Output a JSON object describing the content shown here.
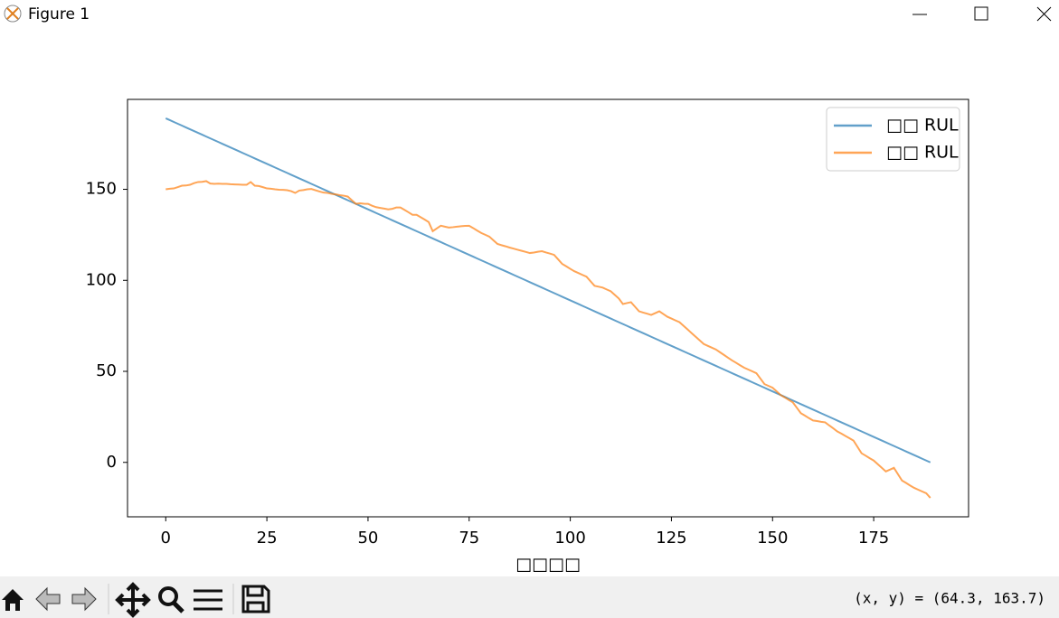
{
  "window": {
    "title": "Figure 1"
  },
  "toolbar": {
    "coordinates": "(x, y) = (64.3, 163.7)"
  },
  "chart_data": {
    "type": "line",
    "xlabel": "□□□□",
    "x": [
      0,
      1,
      2,
      3,
      4,
      5,
      6,
      7,
      8,
      9,
      10,
      11,
      12,
      13,
      14,
      15,
      16,
      17,
      18,
      19,
      20,
      21,
      22,
      23,
      24,
      25,
      26,
      27,
      28,
      29,
      30,
      31,
      32,
      33,
      34,
      35,
      36,
      37,
      38,
      39,
      40,
      41,
      42,
      43,
      44,
      45,
      46,
      47,
      48,
      49,
      50,
      51,
      52,
      53,
      54,
      55,
      56,
      57,
      58,
      59,
      60,
      61,
      62,
      63,
      64,
      65,
      66,
      67,
      68,
      69,
      70,
      71,
      72,
      73,
      74,
      75,
      76,
      77,
      78,
      79,
      80,
      81,
      82,
      83,
      84,
      85,
      86,
      87,
      88,
      89,
      90,
      91,
      92,
      93,
      94,
      95,
      96,
      97,
      98,
      99,
      100,
      101,
      102,
      103,
      104,
      105,
      106,
      107,
      108,
      109,
      110,
      111,
      112,
      113,
      114,
      115,
      116,
      117,
      118,
      119,
      120,
      121,
      122,
      123,
      124,
      125,
      126,
      127,
      128,
      129,
      130,
      131,
      132,
      133,
      134,
      135,
      136,
      137,
      138,
      139,
      140,
      141,
      142,
      143,
      144,
      145,
      146,
      147,
      148,
      149,
      150,
      151,
      152,
      153,
      154,
      155,
      156,
      157,
      158,
      159,
      160,
      161,
      162,
      163,
      164,
      165,
      166,
      167,
      168,
      169,
      170,
      171,
      172,
      173,
      174,
      175,
      176,
      177,
      178,
      179,
      180,
      181,
      182,
      183,
      184,
      185,
      186,
      187,
      188,
      189
    ],
    "series": [
      {
        "name": "□□ RUL",
        "color": "#1f77b4",
        "values": [
          189,
          188,
          187,
          186,
          185,
          184,
          183,
          182,
          181,
          180,
          179,
          178,
          177,
          176,
          175,
          174,
          173,
          172,
          171,
          170,
          169,
          168,
          167,
          166,
          165,
          164,
          163,
          162,
          161,
          160,
          159,
          158,
          157,
          156,
          155,
          154,
          153,
          152,
          151,
          150,
          149,
          148,
          147,
          146,
          145,
          144,
          143,
          142,
          141,
          140,
          139,
          138,
          137,
          136,
          135,
          134,
          133,
          132,
          131,
          130,
          129,
          128,
          127,
          126,
          125,
          124,
          123,
          122,
          121,
          120,
          119,
          118,
          117,
          116,
          115,
          114,
          113,
          112,
          111,
          110,
          109,
          108,
          107,
          106,
          105,
          104,
          103,
          102,
          101,
          100,
          99,
          98,
          97,
          96,
          95,
          94,
          93,
          92,
          91,
          90,
          89,
          88,
          87,
          86,
          85,
          84,
          83,
          82,
          81,
          80,
          79,
          78,
          77,
          76,
          75,
          74,
          73,
          72,
          71,
          70,
          69,
          68,
          67,
          66,
          65,
          64,
          63,
          62,
          61,
          60,
          59,
          58,
          57,
          56,
          55,
          54,
          53,
          52,
          51,
          50,
          49,
          48,
          47,
          46,
          45,
          44,
          43,
          42,
          41,
          40,
          39,
          38,
          37,
          36,
          35,
          34,
          33,
          32,
          31,
          30,
          29,
          28,
          27,
          26,
          25,
          24,
          23,
          22,
          21,
          20,
          19,
          18,
          17,
          16,
          15,
          14,
          13,
          12,
          11,
          10,
          9,
          8,
          7,
          6,
          5,
          4,
          3,
          2,
          1,
          0
        ]
      },
      {
        "name": "□□ RUL",
        "color": "#ff7f0e",
        "values": [
          150.0,
          150.3,
          150.5,
          151.2,
          152.0,
          152.1,
          152.5,
          153.4,
          154.0,
          154.1,
          154.5,
          153.2,
          153.0,
          153.1,
          153.0,
          153.0,
          152.8,
          152.7,
          152.6,
          152.5,
          152.5,
          154.0,
          152.0,
          151.8,
          151.2,
          150.5,
          150.3,
          150.0,
          149.8,
          149.7,
          149.5,
          149.0,
          148.0,
          149.3,
          149.6,
          150.0,
          150.2,
          149.5,
          148.8,
          148.2,
          148.0,
          147.5,
          147.2,
          146.8,
          146.5,
          146.0,
          144.0,
          142.0,
          142.3,
          142.1,
          142.0,
          141.0,
          140.2,
          139.8,
          139.4,
          139.0,
          139.3,
          140.0,
          140.0,
          138.7,
          137.4,
          136.0,
          136.0,
          134.7,
          133.4,
          132.0,
          127.0,
          128.5,
          130.0,
          129.5,
          129.0,
          129.2,
          129.5,
          129.7,
          129.9,
          130.0,
          128.7,
          127.3,
          126.0,
          125.0,
          124.0,
          122.0,
          120.0,
          119.3,
          118.7,
          118.0,
          117.4,
          116.8,
          116.2,
          115.6,
          115.0,
          115.3,
          115.7,
          116.0,
          115.3,
          114.7,
          114.0,
          111.5,
          109.0,
          107.7,
          106.3,
          105.0,
          104.0,
          103.0,
          102.0,
          99.5,
          97.0,
          96.5,
          96.0,
          95.0,
          94.0,
          92.0,
          90.0,
          87.0,
          87.5,
          88.0,
          85.5,
          83.0,
          82.3,
          81.7,
          81.0,
          82.0,
          83.0,
          81.5,
          80.0,
          79.0,
          78.0,
          77.0,
          75.0,
          73.0,
          71.0,
          69.0,
          67.0,
          65.0,
          64.0,
          63.0,
          62.0,
          60.5,
          59.0,
          57.5,
          56.0,
          54.7,
          53.3,
          52.0,
          51.0,
          50.0,
          49.0,
          46.0,
          43.0,
          42.0,
          41.0,
          39.0,
          37.0,
          35.7,
          34.3,
          33.0,
          30.0,
          27.0,
          25.7,
          24.3,
          23.0,
          22.7,
          22.3,
          22.0,
          20.3,
          18.7,
          17.0,
          15.8,
          14.5,
          13.3,
          12.0,
          8.5,
          5.0,
          3.7,
          2.3,
          1.0,
          -1.0,
          -3.0,
          -5.0,
          -4.0,
          -3.0,
          -6.5,
          -10.0,
          -11.3,
          -12.7,
          -14.0,
          -15.0,
          -16.0,
          -17.0,
          -19.5
        ]
      }
    ],
    "alpha": 0.7,
    "xlim": [
      -9.45,
      198.45
    ],
    "xticks": [
      0,
      25,
      50,
      75,
      100,
      125,
      150,
      175
    ],
    "ylim": [
      -29.9,
      199.4
    ],
    "yticks": [
      0,
      50,
      100,
      150
    ],
    "grid": false,
    "legend": "upper right"
  }
}
